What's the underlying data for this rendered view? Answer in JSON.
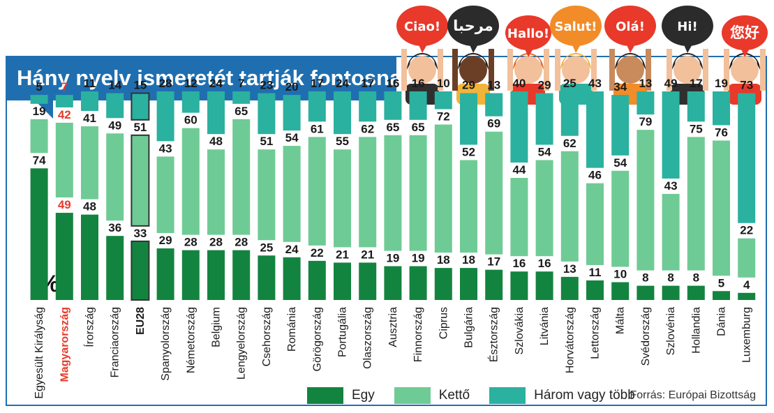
{
  "title": "Hány nyelv ismeretét tartják fontosnak?",
  "unit_label": "(%)",
  "source": "Forrás: Európai Bizottság",
  "greetings": [
    "Ciao!",
    "مرحبا",
    "Hallo!",
    "Salut!",
    "Olá!",
    "Hi!",
    "您好"
  ],
  "colors": {
    "egy": "#13843f",
    "ketto": "#6fcb95",
    "harom": "#2bb19f",
    "highlight": "#e8392a",
    "frame": "#1f6fb0"
  },
  "legend": [
    {
      "label": "Egy",
      "color": "#13843f"
    },
    {
      "label": "Kettő",
      "color": "#6fcb95"
    },
    {
      "label": "Három vagy több",
      "color": "#2bb19f"
    }
  ],
  "chart_data": {
    "type": "bar",
    "stacked": true,
    "categories": [
      "Egyesült Királyság",
      "Magyarország",
      "Írország",
      "Franciaország",
      "EU28",
      "Spanyolország",
      "Németország",
      "Belgium",
      "Lengyelország",
      "Csehország",
      "Románia",
      "Görögország",
      "Portugália",
      "Olaszország",
      "Ausztria",
      "Finnország",
      "Ciprus",
      "Bulgária",
      "Észtország",
      "Szlovákia",
      "Litvánia",
      "Horvátország",
      "Lettország",
      "Málta",
      "Svédország",
      "Szlovénia",
      "Hollandia",
      "Dánia",
      "Luxemburg"
    ],
    "highlight": {
      "Magyarország": "red",
      "EU28": "outlined"
    },
    "series": [
      {
        "name": "Egy",
        "values": [
          74,
          49,
          48,
          36,
          33,
          29,
          28,
          28,
          28,
          25,
          24,
          22,
          21,
          21,
          19,
          19,
          18,
          18,
          17,
          16,
          16,
          13,
          11,
          10,
          8,
          8,
          8,
          5,
          4
        ]
      },
      {
        "name": "Kettő",
        "values": [
          19,
          42,
          41,
          49,
          51,
          43,
          60,
          48,
          65,
          51,
          54,
          61,
          55,
          62,
          65,
          65,
          72,
          52,
          69,
          44,
          54,
          62,
          46,
          54,
          79,
          43,
          75,
          76,
          22
        ]
      },
      {
        "name": "Három vagy több",
        "values": [
          5,
          7,
          11,
          14,
          15,
          28,
          12,
          24,
          7,
          23,
          20,
          17,
          24,
          17,
          16,
          16,
          10,
          29,
          13,
          40,
          29,
          25,
          43,
          34,
          13,
          49,
          17,
          19,
          73
        ]
      }
    ]
  }
}
